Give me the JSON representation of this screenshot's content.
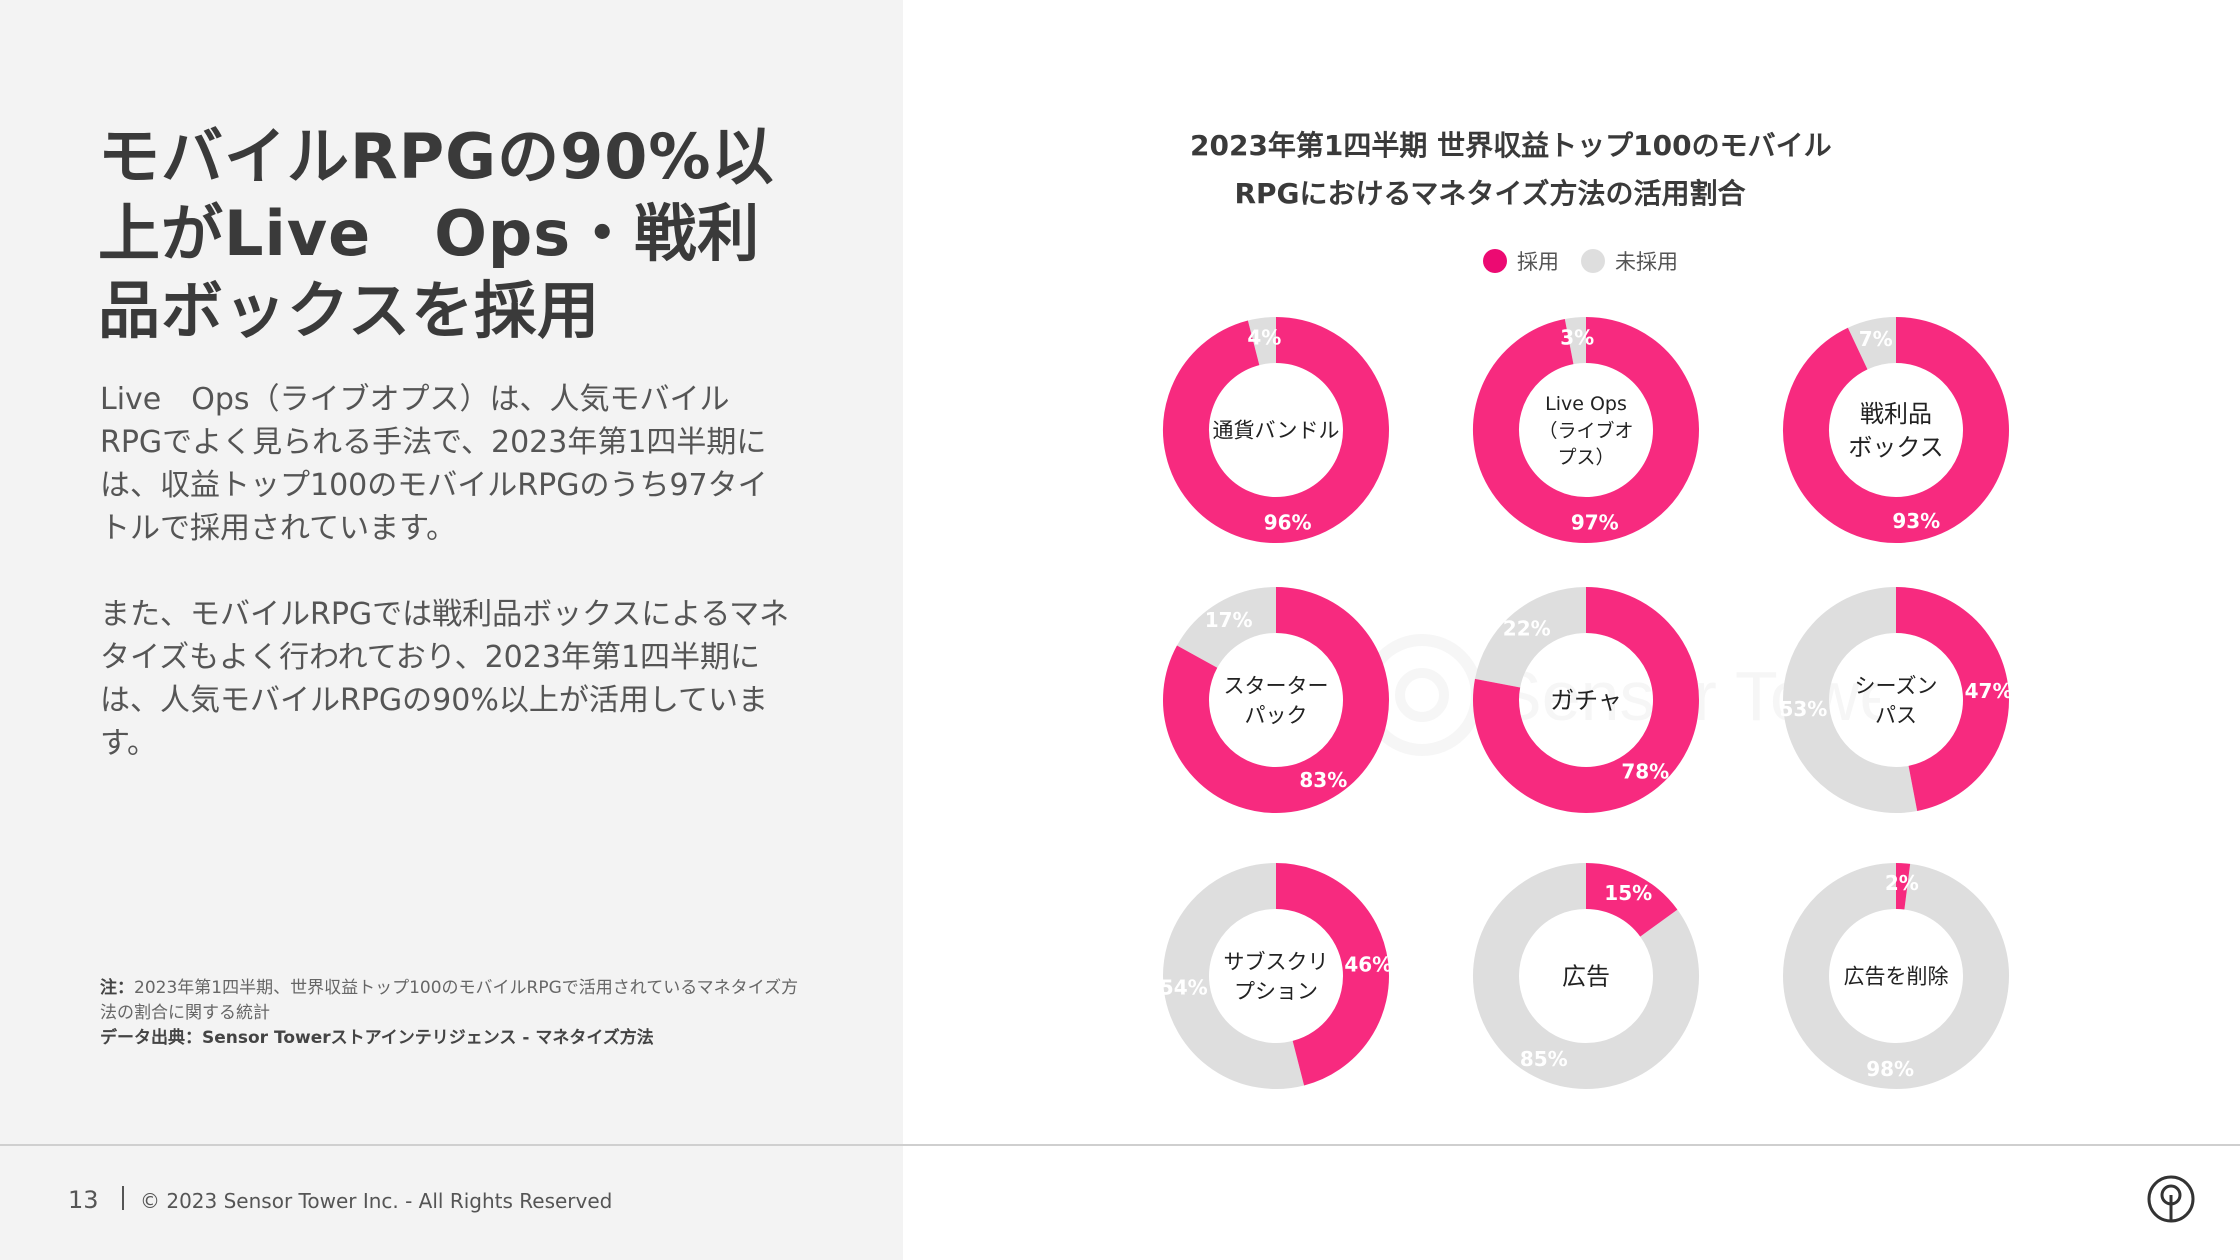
{
  "headline": "モバイルRPGの90%以上がLive　Ops・戦利品ボックスを採用",
  "body": {
    "p1": "Live　Ops（ライブオプス）は、人気モバイルRPGでよく見られる手法で、2023年第1四半期には、収益トップ100のモバイルRPGのうち97タイトルで採用されています。",
    "p2": "また、モバイルRPGでは戦利品ボックスによるマネタイズもよく行われており、2023年第1四半期には、人気モバイルRPGの90%以上が活用しています。"
  },
  "notes": {
    "note_label": "注：",
    "note_text": "2023年第1四半期、世界収益トップ100のモバイルRPGで活用されているマネタイズ方法の割合に関する統計",
    "source": "データ出典：Sensor Towerストアインテリジェンス - マネタイズ方法"
  },
  "footer": {
    "page_number": "13",
    "copyright": "© 2023 Sensor Tower Inc. - All Rights Reserved"
  },
  "watermark_text": "Sensor Tower",
  "colors": {
    "adopted": "#f72a7f",
    "not_adopted": "#dedede",
    "legend_adopted": "#ec0a72"
  },
  "chart_data": {
    "type": "pie",
    "title_line1": "2023年第1四半期 世界収益トップ100のモバイル",
    "title_line2": "RPGにおけるマネタイズ方法の活用割合",
    "legend": [
      "採用",
      "未採用"
    ],
    "series": [
      {
        "name": "通貨バンドル",
        "label_lines": [
          "通貨バンドル"
        ],
        "adopted": 96,
        "not_adopted": 4
      },
      {
        "name": "Live Ops（ライブオプス）",
        "label_lines": [
          "Live Ops",
          "（ライブオ",
          "プス）"
        ],
        "adopted": 97,
        "not_adopted": 3
      },
      {
        "name": "戦利品ボックス",
        "label_lines": [
          "戦利品",
          "ボックス"
        ],
        "adopted": 93,
        "not_adopted": 7
      },
      {
        "name": "スターターパック",
        "label_lines": [
          "スターター",
          "パック"
        ],
        "adopted": 83,
        "not_adopted": 17
      },
      {
        "name": "ガチャ",
        "label_lines": [
          "ガチャ"
        ],
        "adopted": 78,
        "not_adopted": 22
      },
      {
        "name": "シーズンパス",
        "label_lines": [
          "シーズン",
          "パス"
        ],
        "adopted": 47,
        "not_adopted": 53
      },
      {
        "name": "サブスクリプション",
        "label_lines": [
          "サブスクリ",
          "プション"
        ],
        "adopted": 46,
        "not_adopted": 54
      },
      {
        "name": "広告",
        "label_lines": [
          "広告"
        ],
        "adopted": 15,
        "not_adopted": 85
      },
      {
        "name": "広告を削除",
        "label_lines": [
          "広告を削除"
        ],
        "adopted": 2,
        "not_adopted": 98
      }
    ]
  }
}
